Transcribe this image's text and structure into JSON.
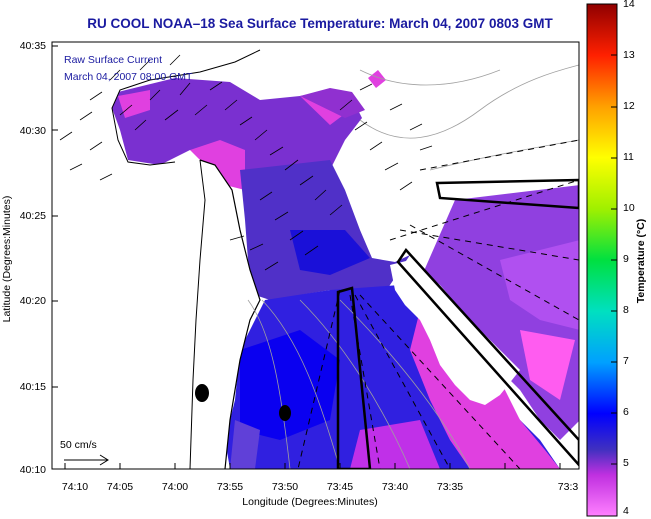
{
  "title": "RU COOL  NOAA–18  Sea Surface Temperature:  March 04, 2007 0803 GMT",
  "inset": {
    "line1": "Raw Surface Current",
    "line2": "March 04, 2007 08:00 GMT"
  },
  "axes": {
    "ylabel": "Latitude (Degrees:Minutes)",
    "xlabel": "Longitude (Degrees:Minutes)",
    "yticks": [
      "40:35",
      "40:30",
      "40:25",
      "40:20",
      "40:15",
      "40:10"
    ],
    "xticks": [
      "74:10",
      "74:05",
      "74:00",
      "73:55",
      "73:50",
      "73:45",
      "73:40",
      "73:35",
      "73:3"
    ]
  },
  "colorbar": {
    "label": "Temperature (°C)",
    "ticks": [
      "14",
      "13",
      "12",
      "11",
      "10",
      "9",
      "8",
      "7",
      "6",
      "5",
      "4"
    ],
    "range": [
      4,
      14
    ]
  },
  "scale": {
    "label": "50 cm/s"
  },
  "colors": {
    "title": "#1a1aa0",
    "land": "#ffffff",
    "coast": "#000000"
  }
}
